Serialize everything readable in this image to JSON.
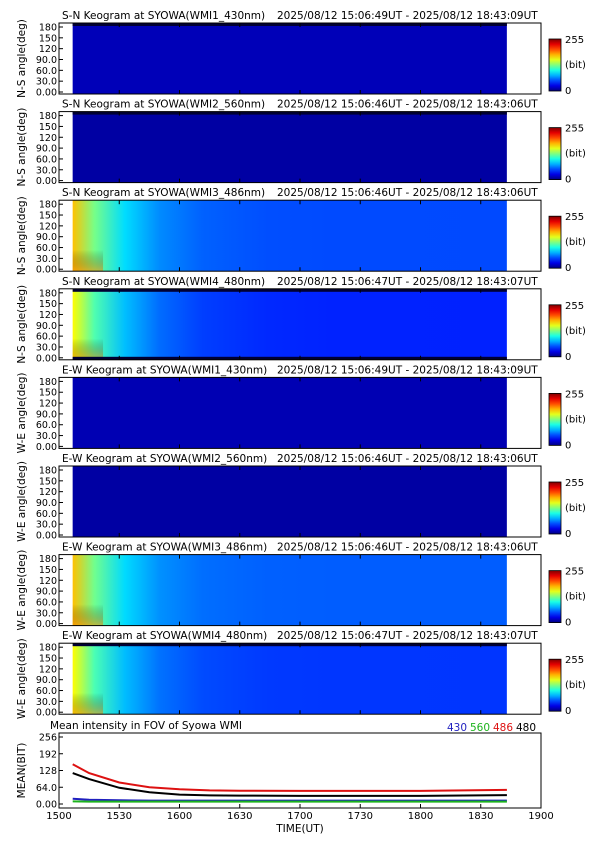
{
  "chart_data": [
    {
      "type": "heatmap",
      "title": "S-N Keogram at SYOWA(WMI1_430nm)",
      "time_range": "2025/08/12 15:06:49UT - 2025/08/12 18:43:09UT",
      "ylabel": "N-S angle(deg)",
      "yticks": [
        "0.00",
        "30.0",
        "60.0",
        "90.0",
        "120",
        "150",
        "180"
      ],
      "ylim": [
        0,
        180
      ],
      "colorbar": {
        "min": "0",
        "max": "255",
        "unit": "(bit)"
      },
      "intensity_profile": {
        "peak": 18,
        "base": 14,
        "decay": 0
      },
      "dark_edges": {
        "top": true,
        "bottom": false
      }
    },
    {
      "type": "heatmap",
      "title": "S-N Keogram at SYOWA(WMI2_560nm)",
      "time_range": "2025/08/12 15:06:46UT - 2025/08/12 18:43:06UT",
      "ylabel": "N-S angle(deg)",
      "yticks": [
        "0.00",
        "30.0",
        "60.0",
        "90.0",
        "120",
        "150",
        "180"
      ],
      "ylim": [
        0,
        180
      ],
      "colorbar": {
        "min": "0",
        "max": "255",
        "unit": "(bit)"
      },
      "intensity_profile": {
        "peak": 10,
        "base": 9,
        "decay": 0
      },
      "dark_edges": {
        "top": true,
        "bottom": false
      }
    },
    {
      "type": "heatmap",
      "title": "S-N Keogram at SYOWA(WMI3_486nm)",
      "time_range": "2025/08/12 15:06:46UT - 2025/08/12 18:43:06UT",
      "ylabel": "N-S angle(deg)",
      "yticks": [
        "0.00",
        "30.0",
        "60.0",
        "90.0",
        "120",
        "150",
        "180"
      ],
      "ylim": [
        0,
        180
      ],
      "colorbar": {
        "min": "0",
        "max": "255",
        "unit": "(bit)"
      },
      "intensity_profile": {
        "peak": 175,
        "base": 50,
        "decay": 0.55
      },
      "dark_edges": {
        "top": false,
        "bottom": false
      }
    },
    {
      "type": "heatmap",
      "title": "S-N Keogram at SYOWA(WMI4_480nm)",
      "time_range": "2025/08/12 15:06:47UT - 2025/08/12 18:43:07UT",
      "ylabel": "N-S angle(deg)",
      "yticks": [
        "0.00",
        "30.0",
        "60.0",
        "90.0",
        "120",
        "150",
        "180"
      ],
      "ylim": [
        0,
        180
      ],
      "colorbar": {
        "min": "0",
        "max": "255",
        "unit": "(bit)"
      },
      "intensity_profile": {
        "peak": 160,
        "base": 40,
        "decay": 0.6
      },
      "dark_edges": {
        "top": true,
        "bottom": true
      }
    },
    {
      "type": "heatmap",
      "title": "E-W Keogram at SYOWA(WMI1_430nm)",
      "time_range": "2025/08/12 15:06:49UT - 2025/08/12 18:43:09UT",
      "ylabel": "W-E angle(deg)",
      "yticks": [
        "0.00",
        "30.0",
        "60.0",
        "90.0",
        "120",
        "150",
        "180"
      ],
      "ylim": [
        0,
        180
      ],
      "colorbar": {
        "min": "0",
        "max": "255",
        "unit": "(bit)"
      },
      "intensity_profile": {
        "peak": 16,
        "base": 13,
        "decay": 0
      },
      "dark_edges": {
        "top": false,
        "bottom": false
      }
    },
    {
      "type": "heatmap",
      "title": "E-W Keogram at SYOWA(WMI2_560nm)",
      "time_range": "2025/08/12 15:06:46UT - 2025/08/12 18:43:06UT",
      "ylabel": "W-E angle(deg)",
      "yticks": [
        "0.00",
        "30.0",
        "60.0",
        "90.0",
        "120",
        "150",
        "180"
      ],
      "ylim": [
        0,
        180
      ],
      "colorbar": {
        "min": "0",
        "max": "255",
        "unit": "(bit)"
      },
      "intensity_profile": {
        "peak": 10,
        "base": 9,
        "decay": 0
      },
      "dark_edges": {
        "top": false,
        "bottom": false
      }
    },
    {
      "type": "heatmap",
      "title": "E-W Keogram at SYOWA(WMI3_486nm)",
      "time_range": "2025/08/12 15:06:46UT - 2025/08/12 18:43:06UT",
      "ylabel": "W-E angle(deg)",
      "yticks": [
        "0.00",
        "30.0",
        "60.0",
        "90.0",
        "120",
        "150",
        "180"
      ],
      "ylim": [
        0,
        180
      ],
      "colorbar": {
        "min": "0",
        "max": "255",
        "unit": "(bit)"
      },
      "intensity_profile": {
        "peak": 175,
        "base": 55,
        "decay": 0.5
      },
      "dark_edges": {
        "top": false,
        "bottom": false
      }
    },
    {
      "type": "heatmap",
      "title": "E-W Keogram at SYOWA(WMI4_480nm)",
      "time_range": "2025/08/12 15:06:47UT - 2025/08/12 18:43:07UT",
      "ylabel": "W-E angle(deg)",
      "yticks": [
        "0.00",
        "30.0",
        "60.0",
        "90.0",
        "120",
        "150",
        "180"
      ],
      "ylim": [
        0,
        180
      ],
      "colorbar": {
        "min": "0",
        "max": "255",
        "unit": "(bit)"
      },
      "intensity_profile": {
        "peak": 160,
        "base": 45,
        "decay": 0.55
      },
      "dark_edges": {
        "top": true,
        "bottom": false
      }
    },
    {
      "type": "line",
      "title": "Mean intensity in FOV of Syowa WMI",
      "xlabel": "TIME(UT)",
      "ylabel": "MEAN(BIT)",
      "xticks": [
        "1500",
        "1530",
        "1600",
        "1630",
        "1700",
        "1730",
        "1800",
        "1830",
        "1900"
      ],
      "yticks": [
        "0.00",
        "64.0",
        "128",
        "192",
        "256"
      ],
      "xlim": [
        0,
        240
      ],
      "ylim": [
        0,
        256
      ],
      "data_xlim": [
        6.8,
        223
      ],
      "legend": "top-right",
      "series": [
        {
          "name": "430",
          "color": "#1f1fbf",
          "x": [
            6.8,
            15,
            30,
            45,
            60,
            90,
            120,
            150,
            180,
            223
          ],
          "values": [
            20,
            16,
            14,
            13,
            13,
            13,
            13,
            13,
            13,
            13
          ]
        },
        {
          "name": "560",
          "color": "#1db31d",
          "x": [
            6.8,
            15,
            30,
            45,
            60,
            90,
            120,
            150,
            180,
            223
          ],
          "values": [
            10,
            9,
            9,
            9,
            9,
            9,
            9,
            9,
            9,
            9
          ]
        },
        {
          "name": "486",
          "color": "#dd1111",
          "x": [
            6.8,
            15,
            30,
            45,
            60,
            75,
            90,
            120,
            150,
            180,
            223
          ],
          "values": [
            152,
            118,
            82,
            64,
            56,
            52,
            51,
            50,
            50,
            50,
            54
          ]
        },
        {
          "name": "480",
          "color": "#000000",
          "x": [
            6.8,
            15,
            30,
            45,
            60,
            75,
            90,
            120,
            150,
            180,
            223
          ],
          "values": [
            118,
            95,
            62,
            45,
            36,
            33,
            32,
            31,
            31,
            31,
            34
          ]
        }
      ]
    }
  ]
}
